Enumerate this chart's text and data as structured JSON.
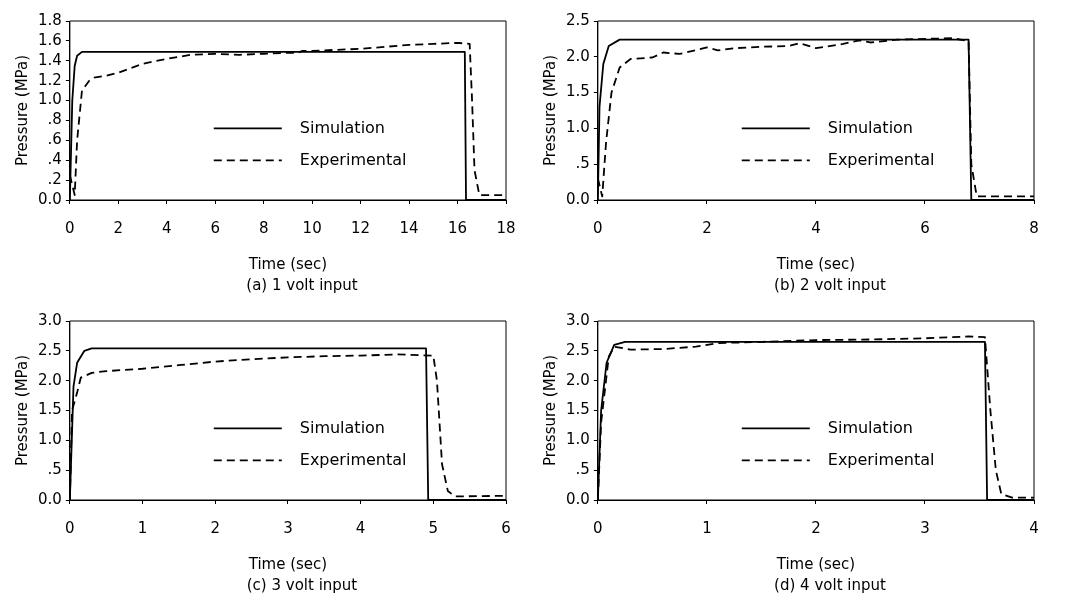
{
  "chart_data": [
    {
      "type": "line",
      "xlabel": "Time (sec)",
      "ylabel": "Pressure (MPa)",
      "annotations": [
        "(a)  1 volt input"
      ],
      "xlim": [
        0,
        18
      ],
      "xticks": [
        0,
        2,
        4,
        6,
        8,
        10,
        12,
        14,
        16,
        18
      ],
      "ylim": [
        0,
        1.8
      ],
      "yticks": [
        {
          "value": 0,
          "label": "0.0"
        },
        {
          "value": 0.2,
          "label": ".2"
        },
        {
          "value": 0.4,
          "label": ".4"
        },
        {
          "value": 0.6,
          "label": ".6"
        },
        {
          "value": 0.8,
          "label": ".8"
        },
        {
          "value": 1,
          "label": "1.0"
        },
        {
          "value": 1.2,
          "label": "1.2"
        },
        {
          "value": 1.4,
          "label": "1.4"
        },
        {
          "value": 1.6,
          "label": "1.6"
        },
        {
          "value": 1.8,
          "label": "1.8"
        }
      ],
      "grid": false,
      "legend": "bottom right",
      "series": [
        {
          "name": "Simulation",
          "color": "#000000",
          "line_style": "solid",
          "x": [
            0,
            0.1,
            0.2,
            0.3,
            0.5,
            16.3,
            16.35,
            18
          ],
          "values": [
            0,
            1.0,
            1.35,
            1.45,
            1.49,
            1.49,
            0,
            0
          ]
        },
        {
          "name": "Experimental",
          "color": "#000000",
          "line_style": "dashed",
          "x": [
            0,
            0.2,
            0.3,
            0.5,
            0.8,
            1,
            1.5,
            2,
            3,
            4,
            5,
            6,
            7,
            8,
            9,
            9.4,
            9.6,
            10,
            11,
            12,
            13,
            14,
            15,
            16,
            16.5,
            16.6,
            16.7,
            16.9,
            18
          ],
          "values": [
            0.25,
            0.05,
            0.6,
            1.1,
            1.2,
            1.23,
            1.25,
            1.28,
            1.37,
            1.42,
            1.46,
            1.47,
            1.46,
            1.47,
            1.48,
            1.48,
            1.5,
            1.5,
            1.51,
            1.52,
            1.54,
            1.56,
            1.57,
            1.58,
            1.57,
            1.0,
            0.3,
            0.05,
            0.05
          ]
        }
      ]
    },
    {
      "type": "line",
      "xlabel": "Time (sec)",
      "ylabel": "Pressure (MPa)",
      "annotations": [
        "(b)  2 volt input"
      ],
      "xlim": [
        0,
        8
      ],
      "xticks": [
        0,
        2,
        4,
        6,
        8
      ],
      "ylim": [
        0,
        2.5
      ],
      "yticks": [
        {
          "value": 0,
          "label": "0.0"
        },
        {
          "value": 0.5,
          "label": ".5"
        },
        {
          "value": 1,
          "label": "1.0"
        },
        {
          "value": 1.5,
          "label": "1.5"
        },
        {
          "value": 2,
          "label": "2.0"
        },
        {
          "value": 2.5,
          "label": "2.5"
        }
      ],
      "grid": false,
      "legend": "bottom right",
      "series": [
        {
          "name": "Simulation",
          "color": "#000000",
          "line_style": "solid",
          "x": [
            0,
            0.03,
            0.1,
            0.2,
            0.4,
            6.8,
            6.85,
            8
          ],
          "values": [
            0,
            1.3,
            1.9,
            2.15,
            2.24,
            2.24,
            0,
            0
          ]
        },
        {
          "name": "Experimental",
          "color": "#000000",
          "line_style": "dashed",
          "x": [
            0,
            0.08,
            0.15,
            0.25,
            0.4,
            0.6,
            1,
            1.2,
            1.5,
            2,
            2.2,
            2.5,
            3,
            3.5,
            3.7,
            4,
            4.5,
            4.8,
            5,
            5.5,
            6,
            6.5,
            6.8,
            6.85,
            6.95,
            8
          ],
          "values": [
            0.3,
            0.05,
            0.8,
            1.5,
            1.85,
            1.97,
            1.99,
            2.06,
            2.04,
            2.13,
            2.09,
            2.12,
            2.14,
            2.15,
            2.19,
            2.12,
            2.18,
            2.23,
            2.2,
            2.24,
            2.25,
            2.26,
            2.22,
            0.5,
            0.05,
            0.05
          ]
        }
      ]
    },
    {
      "type": "line",
      "xlabel": "Time (sec)",
      "ylabel": "Pressure (MPa)",
      "annotations": [
        "(c)  3 volt input"
      ],
      "xlim": [
        0,
        6
      ],
      "xticks": [
        0,
        1,
        2,
        3,
        4,
        5,
        6
      ],
      "ylim": [
        0,
        3
      ],
      "yticks": [
        {
          "value": 0,
          "label": "0.0"
        },
        {
          "value": 0.5,
          "label": ".5"
        },
        {
          "value": 1,
          "label": "1.0"
        },
        {
          "value": 1.5,
          "label": "1.5"
        },
        {
          "value": 2,
          "label": "2.0"
        },
        {
          "value": 2.5,
          "label": "2.5"
        },
        {
          "value": 3,
          "label": "3.0"
        }
      ],
      "grid": false,
      "legend": "bottom right",
      "series": [
        {
          "name": "Simulation",
          "color": "#000000",
          "line_style": "solid",
          "x": [
            0,
            0.05,
            0.1,
            0.2,
            0.3,
            4.9,
            4.93,
            6
          ],
          "values": [
            0,
            1.9,
            2.3,
            2.5,
            2.54,
            2.54,
            0,
            0
          ]
        },
        {
          "name": "Experimental",
          "color": "#000000",
          "line_style": "dashed",
          "x": [
            0,
            0.03,
            0.1,
            0.15,
            0.3,
            0.5,
            1,
            1.5,
            2,
            2.5,
            3,
            3.5,
            4,
            4.5,
            5,
            5.05,
            5.12,
            5.2,
            5.3,
            6
          ],
          "values": [
            0,
            1.5,
            1.8,
            2.05,
            2.13,
            2.16,
            2.2,
            2.26,
            2.32,
            2.36,
            2.39,
            2.41,
            2.42,
            2.44,
            2.42,
            2.0,
            0.6,
            0.15,
            0.06,
            0.07
          ]
        }
      ]
    },
    {
      "type": "line",
      "xlabel": "Time (sec)",
      "ylabel": "Pressure (MPa)",
      "annotations": [
        "(d)  4 volt input"
      ],
      "xlim": [
        0,
        4
      ],
      "xticks": [
        0,
        1,
        2,
        3,
        4
      ],
      "ylim": [
        0,
        3
      ],
      "yticks": [
        {
          "value": 0,
          "label": "0.0"
        },
        {
          "value": 0.5,
          "label": ".5"
        },
        {
          "value": 1,
          "label": "1.0"
        },
        {
          "value": 1.5,
          "label": "1.5"
        },
        {
          "value": 2,
          "label": "2.0"
        },
        {
          "value": 2.5,
          "label": "2.5"
        },
        {
          "value": 3,
          "label": "3.0"
        }
      ],
      "grid": false,
      "legend": "bottom right",
      "series": [
        {
          "name": "Simulation",
          "color": "#000000",
          "line_style": "solid",
          "x": [
            0,
            0.03,
            0.08,
            0.15,
            0.25,
            3.55,
            3.57,
            4
          ],
          "values": [
            0,
            1.5,
            2.3,
            2.6,
            2.65,
            2.65,
            0,
            0
          ]
        },
        {
          "name": "Experimental",
          "color": "#000000",
          "line_style": "dashed",
          "x": [
            0,
            0.03,
            0.1,
            0.15,
            0.3,
            0.6,
            0.9,
            1.1,
            1.5,
            2,
            2.5,
            3,
            3.4,
            3.55,
            3.6,
            3.65,
            3.7,
            3.8,
            4
          ],
          "values": [
            0,
            1.3,
            2.4,
            2.57,
            2.52,
            2.53,
            2.57,
            2.63,
            2.65,
            2.68,
            2.69,
            2.71,
            2.74,
            2.73,
            1.5,
            0.5,
            0.1,
            0.04,
            0.04
          ]
        }
      ]
    }
  ]
}
